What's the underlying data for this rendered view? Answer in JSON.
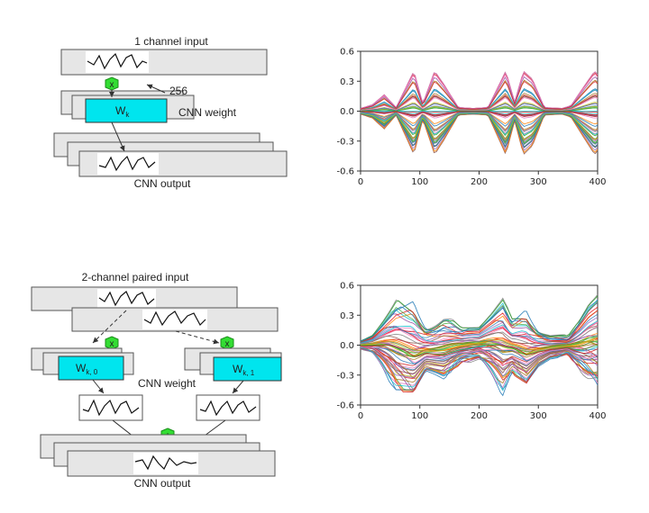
{
  "top_diagram": {
    "input_label": "1 channel input",
    "count_label": "256",
    "weight_label": "CNN weight",
    "weight_symbol": "W",
    "weight_sub": "k",
    "op_symbol": "x",
    "output_label": "CNN output"
  },
  "bottom_diagram": {
    "input_label": "2-channel paired input",
    "weight_label": "CNN weight",
    "weight_symbol": "W",
    "weight_sub_left": "k, 0",
    "weight_sub_right": "k, 1",
    "op_symbol": "x",
    "sum_symbol": "+",
    "output_label": "CNN output"
  },
  "colors": {
    "weight_box": "#00e5ee",
    "operator": "#33dd33",
    "layer_fill": "#e6e6e6",
    "layer_stroke": "#555555"
  },
  "chart_data": [
    {
      "type": "line",
      "title": "",
      "xlabel": "",
      "ylabel": "",
      "xlim": [
        0,
        400
      ],
      "ylim": [
        -0.6,
        0.6
      ],
      "x_ticks": [
        "0",
        "100",
        "200",
        "300",
        "400"
      ],
      "y_ticks": [
        "0.6",
        "0.3",
        "0.0",
        "-0.3",
        "-0.6"
      ],
      "series_count": 256,
      "envelope_x": [
        0,
        20,
        40,
        60,
        90,
        105,
        125,
        140,
        165,
        190,
        215,
        245,
        260,
        275,
        290,
        310,
        340,
        355,
        380,
        395,
        400
      ],
      "envelope_y": [
        0.03,
        0.07,
        0.18,
        0.04,
        0.44,
        0.08,
        0.44,
        0.3,
        0.04,
        0.03,
        0.04,
        0.44,
        0.1,
        0.44,
        0.35,
        0.04,
        0.03,
        0.06,
        0.3,
        0.44,
        0.4
      ]
    },
    {
      "type": "line",
      "title": "",
      "xlabel": "",
      "ylabel": "",
      "xlim": [
        0,
        400
      ],
      "ylim": [
        -0.6,
        0.6
      ],
      "x_ticks": [
        "0",
        "100",
        "200",
        "300",
        "400"
      ],
      "y_ticks": [
        "0.6",
        "0.3",
        "0.0",
        "-0.3",
        "-0.6"
      ],
      "series_count": 256,
      "envelope_x": [
        0,
        20,
        40,
        60,
        90,
        110,
        140,
        170,
        200,
        230,
        240,
        255,
        280,
        300,
        320,
        350,
        370,
        385,
        400
      ],
      "envelope_y": [
        0.05,
        0.12,
        0.3,
        0.48,
        0.55,
        0.3,
        0.35,
        0.2,
        0.22,
        0.45,
        0.52,
        0.3,
        0.45,
        0.25,
        0.15,
        0.1,
        0.3,
        0.5,
        0.62
      ]
    }
  ]
}
